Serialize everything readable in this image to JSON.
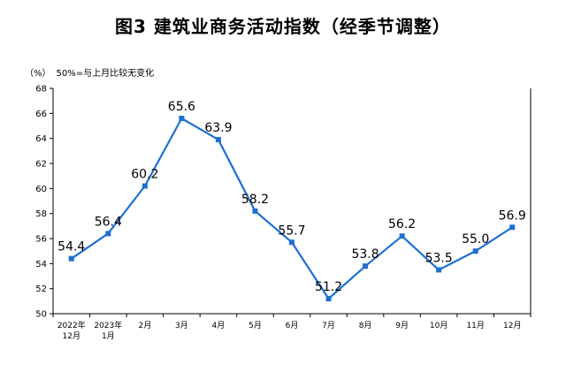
{
  "title": "图3  建筑业商务活动指数（经季节调整）",
  "unit_label": "（%）",
  "baseline_note": "50%=与上月比较无变化",
  "colors": {
    "line": "#1f6fd1",
    "axis": "#000000"
  },
  "chart_data": {
    "type": "line",
    "categories": [
      [
        "2022年",
        "12月"
      ],
      [
        "2023年",
        "1月"
      ],
      [
        "2月"
      ],
      [
        "3月"
      ],
      [
        "4月"
      ],
      [
        "5月"
      ],
      [
        "6月"
      ],
      [
        "7月"
      ],
      [
        "8月"
      ],
      [
        "9月"
      ],
      [
        "10月"
      ],
      [
        "11月"
      ],
      [
        "12月"
      ]
    ],
    "series": [
      {
        "values": [
          54.4,
          56.4,
          60.2,
          65.6,
          63.9,
          58.2,
          55.7,
          51.2,
          53.8,
          56.2,
          53.5,
          55.0,
          56.9
        ],
        "labels": [
          "54.4",
          "56.4",
          "60.2",
          "65.6",
          "63.9",
          "58.2",
          "55.7",
          "51.2",
          "53.8",
          "56.2",
          "53.5",
          "55.0",
          "56.9"
        ]
      }
    ],
    "ylim": [
      50,
      68
    ],
    "yticks": [
      50,
      52,
      54,
      56,
      58,
      60,
      62,
      64,
      66,
      68
    ],
    "grid": false,
    "markers": "square"
  }
}
